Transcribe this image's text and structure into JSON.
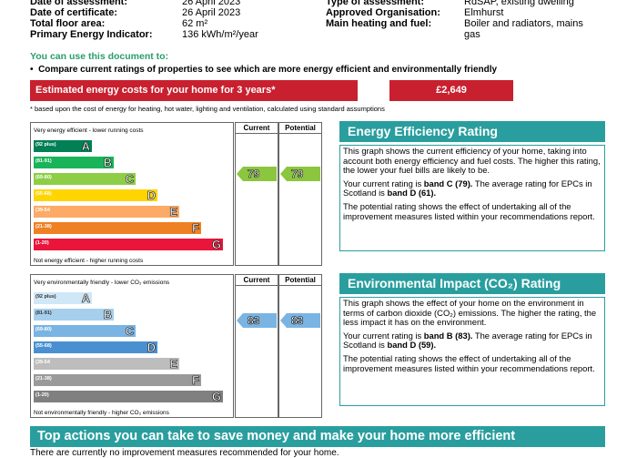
{
  "details": {
    "left": [
      {
        "label": "Date of assessment:",
        "value": "26 April 2023"
      },
      {
        "label": "Date of certificate:",
        "value": "26 April 2023"
      },
      {
        "label": "Total floor area:",
        "value": "62 m²"
      },
      {
        "label": "Primary Energy Indicator:",
        "value": "136 kWh/m²/year"
      }
    ],
    "right": [
      {
        "label": "Type of assessment:",
        "value": "RdSAP, existing dwelling"
      },
      {
        "label": "Approved Organisation:",
        "value": "Elmhurst"
      },
      {
        "label": "Main heating and fuel:",
        "value": "Boiler and radiators, mains"
      },
      {
        "label": "",
        "value": "gas"
      }
    ]
  },
  "use_heading": "You can use this document to:",
  "use_bullet": "Compare current ratings of properties to see which are more energy efficient and environmentally friendly",
  "cost": {
    "label": "Estimated energy costs for your home for 3 years*",
    "value": "£2,649",
    "footnote": "* based upon the cost of energy for heating, hot water, lighting and ventilation, calculated using standard assumptions"
  },
  "energy": {
    "top_caption": "Very energy efficient - lower running costs",
    "bottom_caption": "Not energy efficient - higher running costs",
    "col_current": "Current",
    "col_potential": "Potential",
    "current_value": "79",
    "potential_value": "79",
    "bands": [
      {
        "range": "(92 plus)",
        "letter": "A",
        "color": "#008054"
      },
      {
        "range": "(81-91)",
        "letter": "B",
        "color": "#19b459"
      },
      {
        "range": "(69-80)",
        "letter": "C",
        "color": "#8dce46"
      },
      {
        "range": "(55-68)",
        "letter": "D",
        "color": "#ffd500"
      },
      {
        "range": "(39-54",
        "letter": "E",
        "color": "#fcaa65"
      },
      {
        "range": "(21-38)",
        "letter": "F",
        "color": "#ef8023"
      },
      {
        "range": "(1-20)",
        "letter": "G",
        "color": "#e9153b"
      }
    ],
    "panel_title": "Energy Efficiency Rating",
    "p1": "This graph shows the current efficiency of your home, taking into account both energy efficiency and fuel costs. The higher this rating, the lower your fuel bills are likely to be.",
    "p2_a": "Your current rating is ",
    "p2_b": "band C (79).",
    "p2_c": " The average rating for EPCs in Scotland is ",
    "p2_d": "band D (61).",
    "p3": "The potential rating shows the effect of undertaking all of the improvement measures listed within your recommendations report."
  },
  "environment": {
    "top_caption": "Very environmentally friendly - lower CO₂ emissions",
    "bottom_caption": "Not environmentally friendly - higher CO₂ emissions",
    "col_current": "Current",
    "col_potential": "Potential",
    "current_value": "83",
    "potential_value": "83",
    "bands": [
      {
        "range": "(92 plus)",
        "letter": "A",
        "color": "#cfe7f7"
      },
      {
        "range": "(81-91)",
        "letter": "B",
        "color": "#a6cfee"
      },
      {
        "range": "(69-80)",
        "letter": "C",
        "color": "#79b4e3"
      },
      {
        "range": "(55-68)",
        "letter": "D",
        "color": "#4a90d0"
      },
      {
        "range": "(39-54",
        "letter": "E",
        "color": "#bdbdbd"
      },
      {
        "range": "(21-38)",
        "letter": "F",
        "color": "#9a9a9a"
      },
      {
        "range": "(1-20)",
        "letter": "G",
        "color": "#808080"
      }
    ],
    "panel_title": "Environmental Impact (CO₂) Rating",
    "p1": "This graph shows the effect of your home on the environment in terms of carbon dioxide (CO₂) emissions. The higher the rating, the less impact it has on the environment.",
    "p2_a": "Your current rating is ",
    "p2_b": "band B (83).",
    "p2_c": " The average rating for EPCs in Scotland is ",
    "p2_d": "band D (59).",
    "p3": "The potential rating shows the effect of undertaking all of the improvement measures listed within your recommendations report."
  },
  "top_actions": "Top actions you can take to save money and make your home more efficient",
  "no_measures": "There are currently no improvement measures recommended for your home."
}
